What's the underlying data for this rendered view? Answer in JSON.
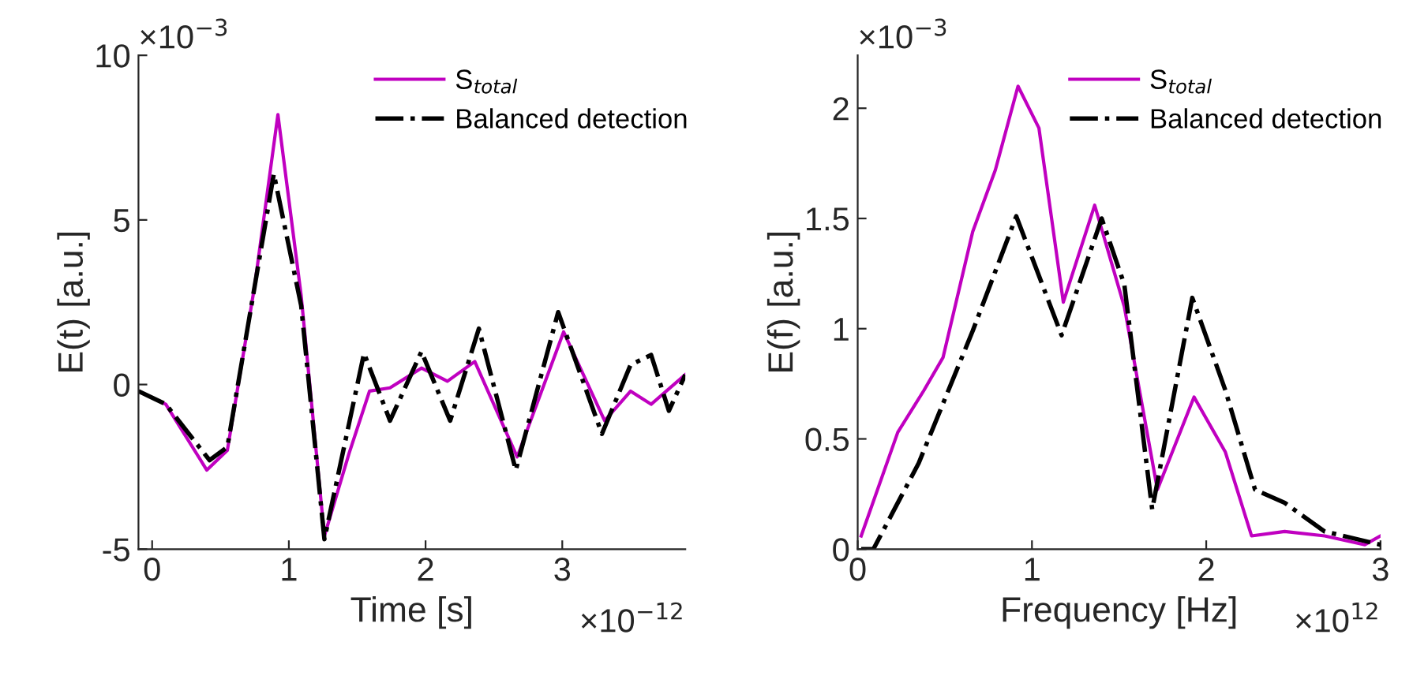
{
  "chart_data": [
    {
      "type": "line",
      "xlabel": "Time [s]",
      "ylabel": "E(t) [a.u.]",
      "xlim": [
        -0.1,
        3.9
      ],
      "xticks": [
        0,
        1,
        2,
        3
      ],
      "ylim": [
        -5,
        10
      ],
      "yticks": [
        -5,
        0,
        5,
        10
      ],
      "legend": "top right",
      "grid": false,
      "annotations": [
        "×10$^{−3}$",
        "×10$^{−12}$"
      ],
      "series": [
        {
          "name": "S$_{total}$",
          "color": "#c000c0",
          "line_style": "solid",
          "x": [
            -0.1,
            0.1,
            0.4,
            0.55,
            0.75,
            0.92,
            1.09,
            1.26,
            1.44,
            1.59,
            1.74,
            1.97,
            2.16,
            2.36,
            2.67,
            3.01,
            3.31,
            3.5,
            3.65,
            3.9
          ],
          "values": [
            -0.2,
            -0.6,
            -2.6,
            -2.0,
            3.0,
            8.2,
            2.7,
            -4.6,
            -2.1,
            -0.2,
            -0.1,
            0.5,
            0.1,
            0.7,
            -2.2,
            1.6,
            -1.1,
            -0.2,
            -0.6,
            0.3
          ]
        },
        {
          "name": "Balanced detection",
          "color": "#000000",
          "line_style": "dashed",
          "x": [
            -0.1,
            0.1,
            0.42,
            0.55,
            0.89,
            1.09,
            1.26,
            1.55,
            1.74,
            1.97,
            2.18,
            2.39,
            2.66,
            2.97,
            3.29,
            3.5,
            3.65,
            3.78,
            3.9
          ],
          "values": [
            -0.2,
            -0.6,
            -2.3,
            -1.9,
            6.4,
            2.4,
            -4.7,
            0.95,
            -1.1,
            1.0,
            -1.1,
            1.7,
            -2.6,
            2.2,
            -1.5,
            0.6,
            0.9,
            -0.8,
            0.3
          ]
        }
      ]
    },
    {
      "type": "line",
      "xlabel": "Frequency [Hz]",
      "ylabel": "E(f) [a.u.]",
      "xlim": [
        0,
        3
      ],
      "xticks": [
        0,
        1,
        2,
        3
      ],
      "ylim": [
        0,
        2.24
      ],
      "yticks": [
        0,
        0.5,
        1,
        1.5,
        2
      ],
      "legend": "top right",
      "grid": false,
      "annotations": [
        "×10$^{−3}$",
        "×10$^{12}$"
      ],
      "series": [
        {
          "name": "S$_{total}$",
          "color": "#c000c0",
          "line_style": "solid",
          "x": [
            0.02,
            0.23,
            0.38,
            0.49,
            0.66,
            0.79,
            0.92,
            1.04,
            1.18,
            1.36,
            1.53,
            1.72,
            1.93,
            2.11,
            2.26,
            2.45,
            2.68,
            2.91,
            3.0
          ],
          "values": [
            0.06,
            0.53,
            0.72,
            0.87,
            1.44,
            1.72,
            2.1,
            1.91,
            1.12,
            1.56,
            1.1,
            0.27,
            0.69,
            0.44,
            0.06,
            0.08,
            0.06,
            0.02,
            0.06
          ]
        },
        {
          "name": "Balanced detection",
          "color": "#000000",
          "line_style": "dashed",
          "x": [
            0.02,
            0.09,
            0.35,
            0.66,
            0.91,
            1.17,
            1.4,
            1.53,
            1.69,
            1.92,
            2.11,
            2.28,
            2.45,
            2.68,
            3.0
          ],
          "values": [
            0.0,
            0.0,
            0.39,
            0.99,
            1.51,
            0.97,
            1.5,
            1.2,
            0.18,
            1.14,
            0.72,
            0.27,
            0.21,
            0.08,
            0.02
          ]
        }
      ]
    }
  ]
}
